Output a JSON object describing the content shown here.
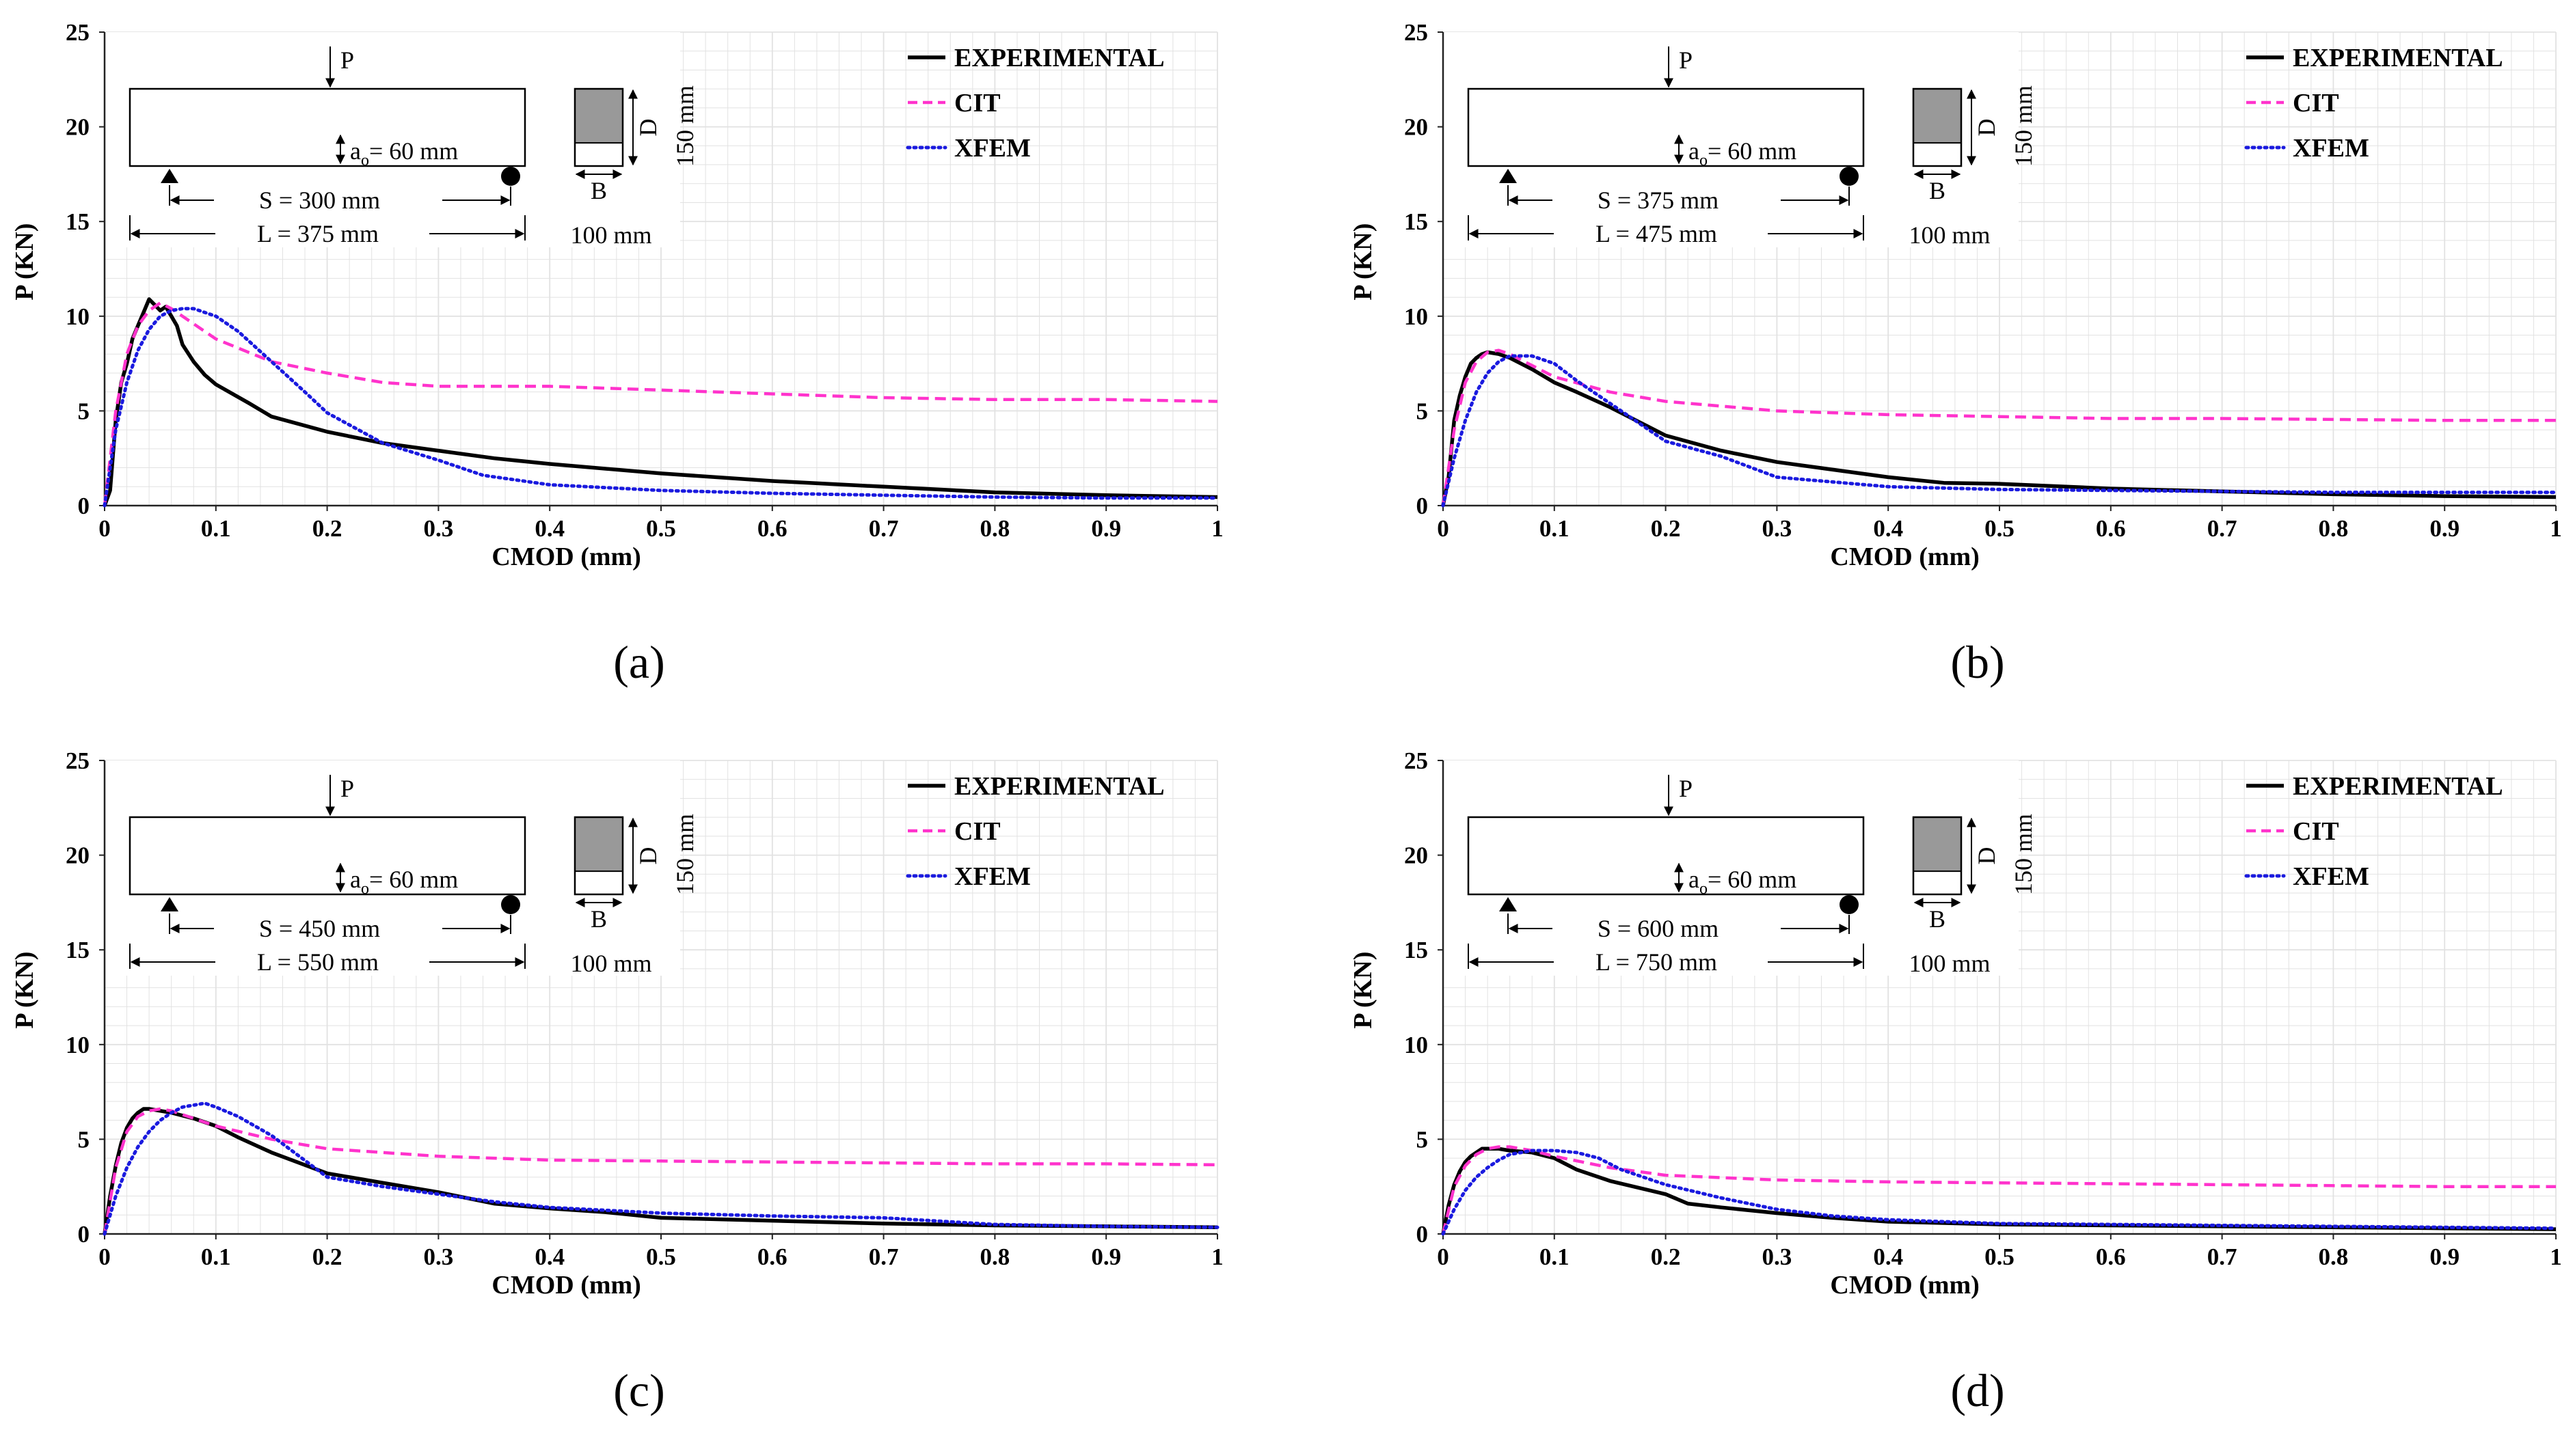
{
  "figure": {
    "panel_labels": [
      "(a)",
      "(b)",
      "(c)",
      "(d)"
    ]
  },
  "colors": {
    "experimental": "#000000",
    "cit": "#ff33cc",
    "xfem": "#1a1adf",
    "grid": "#e2e2e2",
    "axis": "#222222",
    "inset_fill": "#999999"
  },
  "chart_data": [
    {
      "type": "line",
      "panel_label": "(a)",
      "xlabel": "CMOD (mm)",
      "ylabel": "P (KN)",
      "xlim": [
        0,
        1
      ],
      "ylim": [
        0,
        25
      ],
      "xticks": [
        "0",
        "0.1",
        "0.2",
        "0.3",
        "0.4",
        "0.5",
        "0.6",
        "0.7",
        "0.8",
        "0.9",
        "1"
      ],
      "yticks": [
        "0",
        "5",
        "10",
        "15",
        "20",
        "25"
      ],
      "grid": true,
      "legend": [
        "EXPERIMENTAL",
        "CIT",
        "XFEM"
      ],
      "legend_position": "top-right",
      "inset": {
        "load": "P",
        "notch": "a",
        "notch_sub": "o",
        "notch_value": "= 60 mm",
        "span": "S = 300 mm",
        "length": "L = 375 mm",
        "depth_label": "D",
        "breadth_label": "B",
        "depth_value": "150 mm",
        "breadth_value": "100 mm"
      },
      "series": [
        {
          "name": "EXPERIMENTAL",
          "x": [
            0,
            0.005,
            0.01,
            0.015,
            0.02,
            0.025,
            0.03,
            0.035,
            0.04,
            0.045,
            0.05,
            0.055,
            0.06,
            0.065,
            0.07,
            0.08,
            0.09,
            0.1,
            0.13,
            0.15,
            0.2,
            0.25,
            0.3,
            0.35,
            0.4,
            0.5,
            0.6,
            0.7,
            0.8,
            0.9,
            1.0
          ],
          "y": [
            0,
            0.8,
            4.5,
            6.5,
            7.5,
            8.8,
            9.5,
            10.2,
            10.9,
            10.6,
            10.3,
            10.5,
            10.0,
            9.5,
            8.5,
            7.6,
            6.9,
            6.4,
            5.4,
            4.7,
            3.9,
            3.3,
            2.9,
            2.5,
            2.2,
            1.7,
            1.3,
            1.0,
            0.7,
            0.55,
            0.45
          ]
        },
        {
          "name": "CIT",
          "x": [
            0,
            0.01,
            0.02,
            0.03,
            0.04,
            0.05,
            0.06,
            0.08,
            0.1,
            0.15,
            0.2,
            0.25,
            0.3,
            0.35,
            0.4,
            0.5,
            0.6,
            0.7,
            0.8,
            0.9,
            1.0
          ],
          "y": [
            0,
            5,
            8,
            9.5,
            10.3,
            10.7,
            10.4,
            9.6,
            8.8,
            7.6,
            7.0,
            6.5,
            6.3,
            6.3,
            6.3,
            6.1,
            5.9,
            5.7,
            5.6,
            5.6,
            5.5
          ]
        },
        {
          "name": "XFEM",
          "x": [
            0,
            0.01,
            0.02,
            0.03,
            0.04,
            0.05,
            0.06,
            0.07,
            0.08,
            0.1,
            0.12,
            0.15,
            0.18,
            0.2,
            0.25,
            0.3,
            0.34,
            0.4,
            0.5,
            0.6,
            0.7,
            0.8,
            0.9,
            1.0
          ],
          "y": [
            0,
            4,
            6.5,
            8.2,
            9.3,
            10.0,
            10.3,
            10.4,
            10.4,
            10.0,
            9.2,
            7.6,
            6.0,
            4.9,
            3.3,
            2.4,
            1.6,
            1.1,
            0.8,
            0.65,
            0.55,
            0.45,
            0.4,
            0.4
          ]
        }
      ]
    },
    {
      "type": "line",
      "panel_label": "(b)",
      "xlabel": "CMOD (mm)",
      "ylabel": "P (KN)",
      "xlim": [
        0,
        1
      ],
      "ylim": [
        0,
        25
      ],
      "xticks": [
        "0",
        "0.1",
        "0.2",
        "0.3",
        "0.4",
        "0.5",
        "0.6",
        "0.7",
        "0.8",
        "0.9",
        "1"
      ],
      "yticks": [
        "0",
        "5",
        "10",
        "15",
        "20",
        "25"
      ],
      "grid": true,
      "legend": [
        "EXPERIMENTAL",
        "CIT",
        "XFEM"
      ],
      "legend_position": "top-right",
      "inset": {
        "load": "P",
        "notch": "a",
        "notch_sub": "o",
        "notch_value": "= 60 mm",
        "span": "S = 375 mm",
        "length": "L = 475 mm",
        "depth_label": "D",
        "breadth_label": "B",
        "depth_value": "150 mm",
        "breadth_value": "100 mm"
      },
      "series": [
        {
          "name": "EXPERIMENTAL",
          "x": [
            0,
            0.005,
            0.01,
            0.015,
            0.02,
            0.025,
            0.03,
            0.035,
            0.04,
            0.05,
            0.06,
            0.08,
            0.1,
            0.12,
            0.15,
            0.2,
            0.25,
            0.3,
            0.4,
            0.45,
            0.5,
            0.6,
            0.7,
            0.8,
            0.9,
            1.0
          ],
          "y": [
            0,
            1.5,
            4.5,
            5.8,
            6.8,
            7.5,
            7.8,
            8.0,
            8.1,
            8.0,
            7.8,
            7.2,
            6.5,
            6.0,
            5.2,
            3.7,
            2.9,
            2.3,
            1.5,
            1.2,
            1.15,
            0.9,
            0.75,
            0.6,
            0.5,
            0.45
          ]
        },
        {
          "name": "CIT",
          "x": [
            0,
            0.01,
            0.02,
            0.03,
            0.04,
            0.05,
            0.06,
            0.08,
            0.1,
            0.15,
            0.2,
            0.3,
            0.4,
            0.5,
            0.6,
            0.7,
            0.8,
            0.9,
            1.0
          ],
          "y": [
            0,
            4,
            6.5,
            7.6,
            8.1,
            8.2,
            8.0,
            7.4,
            6.8,
            6.0,
            5.5,
            5.0,
            4.8,
            4.7,
            4.6,
            4.6,
            4.55,
            4.5,
            4.5
          ]
        },
        {
          "name": "XFEM",
          "x": [
            0,
            0.01,
            0.02,
            0.03,
            0.04,
            0.05,
            0.06,
            0.08,
            0.1,
            0.12,
            0.15,
            0.2,
            0.25,
            0.3,
            0.4,
            0.5,
            0.6,
            0.7,
            0.8,
            0.9,
            1.0
          ],
          "y": [
            0,
            2.5,
            4.5,
            6.0,
            7.0,
            7.6,
            7.9,
            7.9,
            7.5,
            6.6,
            5.4,
            3.4,
            2.6,
            1.5,
            1.0,
            0.85,
            0.8,
            0.75,
            0.7,
            0.7,
            0.7
          ]
        }
      ]
    },
    {
      "type": "line",
      "panel_label": "(c)",
      "xlabel": "CMOD (mm)",
      "ylabel": "P (KN)",
      "xlim": [
        0,
        1
      ],
      "ylim": [
        0,
        25
      ],
      "xticks": [
        "0",
        "0.1",
        "0.2",
        "0.3",
        "0.4",
        "0.5",
        "0.6",
        "0.7",
        "0.8",
        "0.9",
        "1"
      ],
      "yticks": [
        "0",
        "5",
        "10",
        "15",
        "20",
        "25"
      ],
      "grid": true,
      "legend": [
        "EXPERIMENTAL",
        "CIT",
        "XFEM"
      ],
      "legend_position": "top-right",
      "inset": {
        "load": "P",
        "notch": "a",
        "notch_sub": "o",
        "notch_value": "= 60 mm",
        "span": "S = 450 mm",
        "length": "L = 550 mm",
        "depth_label": "D",
        "breadth_label": "B",
        "depth_value": "150 mm",
        "breadth_value": "100 mm"
      },
      "series": [
        {
          "name": "EXPERIMENTAL",
          "x": [
            0,
            0.005,
            0.01,
            0.015,
            0.02,
            0.025,
            0.03,
            0.035,
            0.04,
            0.05,
            0.06,
            0.08,
            0.1,
            0.12,
            0.15,
            0.2,
            0.25,
            0.3,
            0.35,
            0.4,
            0.45,
            0.5,
            0.6,
            0.7,
            0.8,
            0.9,
            1.0
          ],
          "y": [
            0,
            2.0,
            3.6,
            4.8,
            5.6,
            6.1,
            6.4,
            6.6,
            6.6,
            6.5,
            6.4,
            6.1,
            5.7,
            5.1,
            4.3,
            3.2,
            2.7,
            2.2,
            1.6,
            1.35,
            1.15,
            0.85,
            0.7,
            0.55,
            0.45,
            0.4,
            0.35
          ]
        },
        {
          "name": "CIT",
          "x": [
            0,
            0.01,
            0.02,
            0.03,
            0.04,
            0.05,
            0.06,
            0.08,
            0.1,
            0.15,
            0.2,
            0.3,
            0.4,
            0.5,
            0.6,
            0.7,
            0.8,
            0.9,
            1.0
          ],
          "y": [
            0,
            3.5,
            5.4,
            6.2,
            6.5,
            6.6,
            6.5,
            6.1,
            5.7,
            5.0,
            4.5,
            4.1,
            3.9,
            3.85,
            3.8,
            3.75,
            3.7,
            3.7,
            3.65
          ]
        },
        {
          "name": "XFEM",
          "x": [
            0,
            0.01,
            0.02,
            0.03,
            0.04,
            0.05,
            0.06,
            0.07,
            0.08,
            0.09,
            0.1,
            0.12,
            0.15,
            0.2,
            0.25,
            0.3,
            0.35,
            0.4,
            0.5,
            0.6,
            0.7,
            0.8,
            0.9,
            1.0
          ],
          "y": [
            0,
            2.0,
            3.5,
            4.6,
            5.4,
            6.0,
            6.4,
            6.7,
            6.8,
            6.9,
            6.7,
            6.2,
            5.2,
            3.0,
            2.5,
            2.1,
            1.7,
            1.4,
            1.1,
            0.95,
            0.85,
            0.5,
            0.4,
            0.35
          ]
        }
      ]
    },
    {
      "type": "line",
      "panel_label": "(d)",
      "xlabel": "CMOD (mm)",
      "ylabel": "P (KN)",
      "xlim": [
        0,
        1
      ],
      "ylim": [
        0,
        25
      ],
      "xticks": [
        "0",
        "0.1",
        "0.2",
        "0.3",
        "0.4",
        "0.5",
        "0.6",
        "0.7",
        "0.8",
        "0.9",
        "1"
      ],
      "yticks": [
        "0",
        "5",
        "10",
        "15",
        "20",
        "25"
      ],
      "grid": true,
      "legend": [
        "EXPERIMENTAL",
        "CIT",
        "XFEM"
      ],
      "legend_position": "top-right",
      "inset": {
        "load": "P",
        "notch": "a",
        "notch_sub": "o",
        "notch_value": "= 60 mm",
        "span": "S = 600 mm",
        "length": "L = 750 mm",
        "depth_label": "D",
        "breadth_label": "B",
        "depth_value": "150 mm",
        "breadth_value": "100 mm"
      },
      "series": [
        {
          "name": "EXPERIMENTAL",
          "x": [
            0,
            0.005,
            0.01,
            0.015,
            0.02,
            0.025,
            0.03,
            0.035,
            0.04,
            0.05,
            0.06,
            0.08,
            0.1,
            0.12,
            0.15,
            0.2,
            0.22,
            0.25,
            0.3,
            0.35,
            0.4,
            0.5,
            0.6,
            0.7,
            0.8,
            0.9,
            1.0
          ],
          "y": [
            0,
            1.5,
            2.6,
            3.3,
            3.8,
            4.1,
            4.3,
            4.5,
            4.5,
            4.5,
            4.4,
            4.3,
            4.0,
            3.4,
            2.8,
            2.1,
            1.6,
            1.4,
            1.1,
            0.85,
            0.65,
            0.5,
            0.45,
            0.4,
            0.35,
            0.3,
            0.25
          ]
        },
        {
          "name": "CIT",
          "x": [
            0,
            0.01,
            0.02,
            0.03,
            0.04,
            0.05,
            0.06,
            0.08,
            0.1,
            0.15,
            0.2,
            0.3,
            0.4,
            0.5,
            0.6,
            0.7,
            0.8,
            0.9,
            1.0
          ],
          "y": [
            0,
            2.5,
            3.6,
            4.2,
            4.5,
            4.6,
            4.6,
            4.4,
            4.1,
            3.5,
            3.1,
            2.85,
            2.75,
            2.7,
            2.65,
            2.6,
            2.55,
            2.5,
            2.5
          ]
        },
        {
          "name": "XFEM",
          "x": [
            0,
            0.01,
            0.02,
            0.03,
            0.04,
            0.05,
            0.06,
            0.08,
            0.1,
            0.12,
            0.14,
            0.16,
            0.2,
            0.25,
            0.3,
            0.35,
            0.4,
            0.5,
            0.6,
            0.7,
            0.8,
            0.9,
            1.0
          ],
          "y": [
            0,
            1.3,
            2.3,
            3.0,
            3.5,
            3.9,
            4.2,
            4.4,
            4.4,
            4.3,
            4.0,
            3.4,
            2.6,
            1.9,
            1.3,
            0.95,
            0.75,
            0.55,
            0.5,
            0.45,
            0.4,
            0.35,
            0.3
          ]
        }
      ]
    }
  ]
}
